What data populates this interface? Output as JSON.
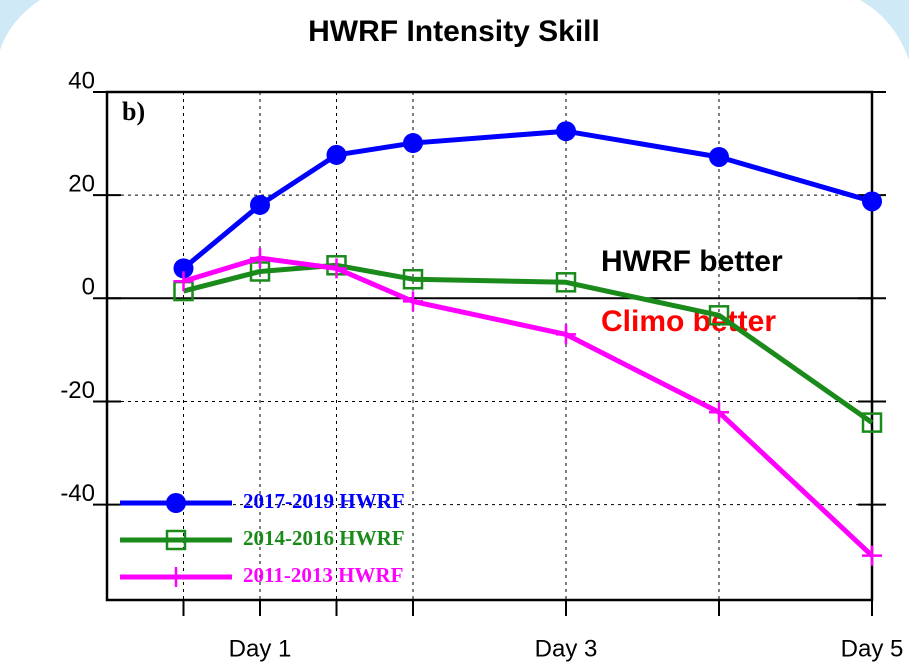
{
  "chart_data": {
    "type": "line",
    "title": "HWRF Intensity Skill",
    "panel_label": "b)",
    "annotations": [
      {
        "text": "HWRF better",
        "color": "#000000"
      },
      {
        "text": "Climo better",
        "color": "#ff0000"
      }
    ],
    "x": [
      12,
      24,
      36,
      48,
      72,
      96,
      120
    ],
    "xlim": [
      0,
      120
    ],
    "xticks": [
      {
        "value": 24,
        "label": "Day 1"
      },
      {
        "value": 72,
        "label": "Day 3"
      },
      {
        "value": 120,
        "label": "Day 5"
      }
    ],
    "ylim": [
      -58.5,
      40
    ],
    "yticks": [
      -40,
      -20,
      0,
      20,
      40
    ],
    "grid": true,
    "legend": "lower left",
    "series": [
      {
        "name": "2017-2019 HWRF",
        "color": "#0000ff",
        "marker": "circle",
        "values": [
          5.8,
          18.1,
          27.8,
          30.1,
          32.4,
          27.4,
          18.8
        ]
      },
      {
        "name": "2014-2016 HWRF",
        "color": "#1a8a1a",
        "marker": "square",
        "values": [
          1.4,
          5.2,
          6.4,
          3.7,
          3.1,
          -3.3,
          -24.1
        ]
      },
      {
        "name": "2011-2013 HWRF",
        "color": "#ff00ff",
        "marker": "plus",
        "values": [
          3.3,
          7.8,
          5.8,
          -0.6,
          -7.0,
          -22.1,
          -49.9
        ]
      }
    ]
  }
}
